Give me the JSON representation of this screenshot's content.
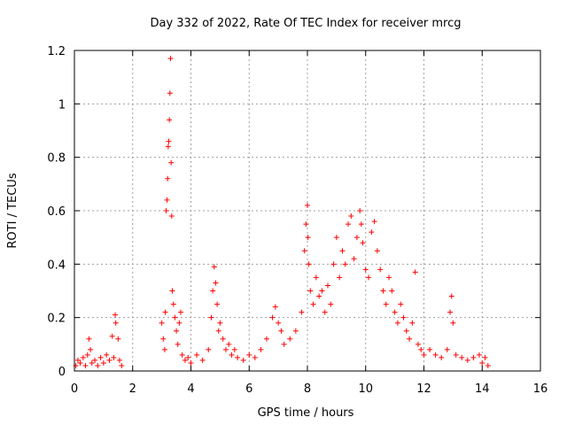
{
  "chart_data": {
    "type": "scatter",
    "title": "Day 332 of 2022, Rate Of TEC Index for receiver mrcg",
    "xlabel": "GPS time / hours",
    "ylabel": "ROTI / TECUs",
    "xlim": [
      0,
      16
    ],
    "ylim": [
      0,
      1.2
    ],
    "x_ticks": [
      "0",
      "2",
      "4",
      "6",
      "8",
      "10",
      "12",
      "14",
      "16"
    ],
    "x_tick_values": [
      0,
      2,
      4,
      6,
      8,
      10,
      12,
      14,
      16
    ],
    "y_ticks": [
      "0",
      "0.2",
      "0.4",
      "0.6",
      "0.8",
      "1",
      "1.2"
    ],
    "y_tick_values": [
      0,
      0.2,
      0.4,
      0.6,
      0.8,
      1.0,
      1.2
    ],
    "grid": true,
    "marker": "+",
    "marker_color": "#ff0000",
    "series": [
      {
        "name": "ROTI",
        "points": [
          [
            0.05,
            0.02
          ],
          [
            0.12,
            0.04
          ],
          [
            0.2,
            0.03
          ],
          [
            0.3,
            0.05
          ],
          [
            0.38,
            0.02
          ],
          [
            0.45,
            0.06
          ],
          [
            0.5,
            0.12
          ],
          [
            0.55,
            0.08
          ],
          [
            0.6,
            0.03
          ],
          [
            0.7,
            0.04
          ],
          [
            0.8,
            0.02
          ],
          [
            0.9,
            0.05
          ],
          [
            1.0,
            0.03
          ],
          [
            1.1,
            0.06
          ],
          [
            1.2,
            0.04
          ],
          [
            1.3,
            0.13
          ],
          [
            1.35,
            0.05
          ],
          [
            1.4,
            0.21
          ],
          [
            1.42,
            0.18
          ],
          [
            1.5,
            0.12
          ],
          [
            1.55,
            0.04
          ],
          [
            1.62,
            0.02
          ],
          [
            3.0,
            0.18
          ],
          [
            3.05,
            0.12
          ],
          [
            3.1,
            0.08
          ],
          [
            3.12,
            0.22
          ],
          [
            3.15,
            0.6
          ],
          [
            3.18,
            0.64
          ],
          [
            3.2,
            0.72
          ],
          [
            3.22,
            0.84
          ],
          [
            3.24,
            0.86
          ],
          [
            3.26,
            0.94
          ],
          [
            3.28,
            1.04
          ],
          [
            3.3,
            1.17
          ],
          [
            3.32,
            0.78
          ],
          [
            3.34,
            0.58
          ],
          [
            3.36,
            0.3
          ],
          [
            3.4,
            0.25
          ],
          [
            3.45,
            0.2
          ],
          [
            3.5,
            0.15
          ],
          [
            3.55,
            0.1
          ],
          [
            3.6,
            0.18
          ],
          [
            3.65,
            0.22
          ],
          [
            3.7,
            0.06
          ],
          [
            3.8,
            0.04
          ],
          [
            3.9,
            0.05
          ],
          [
            4.0,
            0.03
          ],
          [
            4.2,
            0.06
          ],
          [
            4.4,
            0.04
          ],
          [
            4.6,
            0.08
          ],
          [
            4.7,
            0.2
          ],
          [
            4.75,
            0.3
          ],
          [
            4.8,
            0.39
          ],
          [
            4.85,
            0.33
          ],
          [
            4.9,
            0.25
          ],
          [
            4.95,
            0.15
          ],
          [
            5.0,
            0.18
          ],
          [
            5.1,
            0.12
          ],
          [
            5.2,
            0.08
          ],
          [
            5.3,
            0.1
          ],
          [
            5.4,
            0.06
          ],
          [
            5.5,
            0.08
          ],
          [
            5.6,
            0.05
          ],
          [
            5.8,
            0.04
          ],
          [
            6.0,
            0.06
          ],
          [
            6.2,
            0.05
          ],
          [
            6.4,
            0.08
          ],
          [
            6.6,
            0.12
          ],
          [
            6.8,
            0.2
          ],
          [
            6.9,
            0.24
          ],
          [
            7.0,
            0.18
          ],
          [
            7.1,
            0.15
          ],
          [
            7.2,
            0.1
          ],
          [
            7.4,
            0.12
          ],
          [
            7.6,
            0.15
          ],
          [
            7.8,
            0.22
          ],
          [
            7.9,
            0.45
          ],
          [
            7.95,
            0.55
          ],
          [
            8.0,
            0.62
          ],
          [
            8.02,
            0.5
          ],
          [
            8.05,
            0.4
          ],
          [
            8.1,
            0.3
          ],
          [
            8.2,
            0.25
          ],
          [
            8.3,
            0.35
          ],
          [
            8.4,
            0.28
          ],
          [
            8.5,
            0.3
          ],
          [
            8.6,
            0.22
          ],
          [
            8.7,
            0.32
          ],
          [
            8.8,
            0.25
          ],
          [
            8.9,
            0.4
          ],
          [
            9.0,
            0.5
          ],
          [
            9.1,
            0.35
          ],
          [
            9.2,
            0.45
          ],
          [
            9.3,
            0.4
          ],
          [
            9.4,
            0.55
          ],
          [
            9.5,
            0.58
          ],
          [
            9.6,
            0.42
          ],
          [
            9.7,
            0.5
          ],
          [
            9.8,
            0.6
          ],
          [
            9.85,
            0.55
          ],
          [
            9.9,
            0.48
          ],
          [
            10.0,
            0.38
          ],
          [
            10.1,
            0.35
          ],
          [
            10.2,
            0.52
          ],
          [
            10.3,
            0.56
          ],
          [
            10.4,
            0.45
          ],
          [
            10.5,
            0.38
          ],
          [
            10.6,
            0.3
          ],
          [
            10.7,
            0.25
          ],
          [
            10.8,
            0.35
          ],
          [
            10.9,
            0.3
          ],
          [
            11.0,
            0.22
          ],
          [
            11.1,
            0.18
          ],
          [
            11.2,
            0.25
          ],
          [
            11.3,
            0.2
          ],
          [
            11.4,
            0.15
          ],
          [
            11.5,
            0.12
          ],
          [
            11.6,
            0.18
          ],
          [
            11.7,
            0.37
          ],
          [
            11.8,
            0.1
          ],
          [
            11.9,
            0.08
          ],
          [
            12.0,
            0.06
          ],
          [
            12.2,
            0.08
          ],
          [
            12.4,
            0.06
          ],
          [
            12.6,
            0.05
          ],
          [
            12.8,
            0.08
          ],
          [
            12.9,
            0.22
          ],
          [
            12.95,
            0.28
          ],
          [
            13.0,
            0.18
          ],
          [
            13.1,
            0.06
          ],
          [
            13.3,
            0.05
          ],
          [
            13.5,
            0.04
          ],
          [
            13.7,
            0.05
          ],
          [
            13.9,
            0.06
          ],
          [
            14.0,
            0.03
          ],
          [
            14.1,
            0.05
          ],
          [
            14.2,
            0.02
          ]
        ]
      }
    ]
  }
}
